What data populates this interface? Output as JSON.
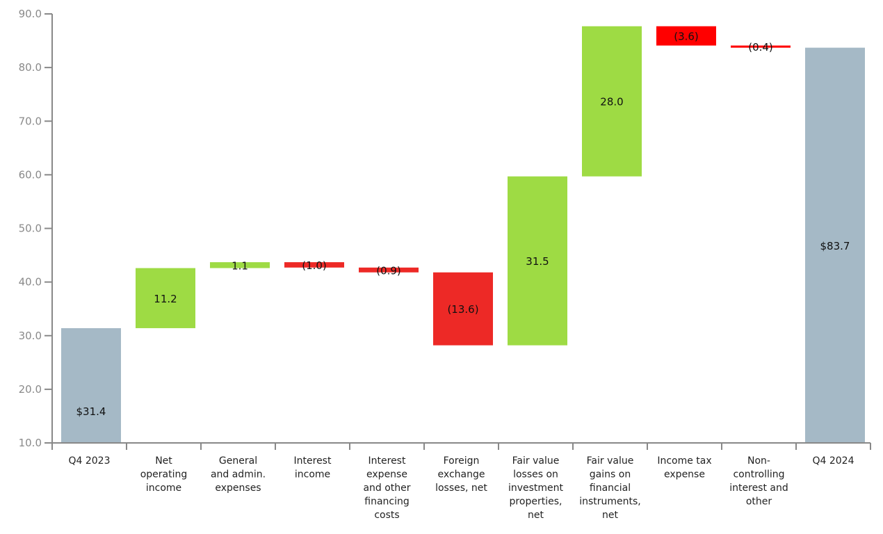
{
  "chart_data": {
    "type": "waterfall",
    "title": "",
    "xlabel": "",
    "ylabel": "",
    "ylim": [
      10,
      90
    ],
    "yticks": [
      "10.0",
      "20.0",
      "30.0",
      "40.0",
      "50.0",
      "60.0",
      "70.0",
      "80.0",
      "90.0"
    ],
    "grid": false,
    "colors": {
      "total": "#a5b9c6",
      "increase": "#9edb44",
      "decrease": "#ed2926",
      "decrease_bright": "#ff0000"
    },
    "categories": [
      [
        "Q4 2023"
      ],
      [
        "Net",
        "operating",
        "income"
      ],
      [
        "General",
        "and admin.",
        "expenses"
      ],
      [
        "Interest",
        "income"
      ],
      [
        "Interest",
        "expense",
        "and other",
        "financing",
        "costs"
      ],
      [
        "Foreign",
        "exchange",
        "losses, net"
      ],
      [
        "Fair value",
        "losses on",
        "investment",
        "properties,",
        "net"
      ],
      [
        "Fair value",
        "gains on",
        "financial",
        "instruments,",
        "net"
      ],
      [
        "Income tax",
        "expense"
      ],
      [
        "Non-",
        "controlling",
        "interest and",
        "other"
      ],
      [
        "Q4 2024"
      ]
    ],
    "bars": [
      {
        "kind": "total",
        "value": 31.4,
        "label": "$31.4",
        "color": "#a5b9c6"
      },
      {
        "kind": "delta",
        "value": 11.2,
        "label": "11.2",
        "color": "#9edb44"
      },
      {
        "kind": "delta",
        "value": 1.1,
        "label": "1.1",
        "color": "#9edb44"
      },
      {
        "kind": "delta",
        "value": -1.0,
        "label": "(1.0)",
        "color": "#ed2926"
      },
      {
        "kind": "delta",
        "value": -0.9,
        "label": "(0.9)",
        "color": "#ed2926"
      },
      {
        "kind": "delta",
        "value": -13.6,
        "label": "(13.6)",
        "color": "#ed2926"
      },
      {
        "kind": "delta",
        "value": 31.5,
        "label": "31.5",
        "color": "#9edb44"
      },
      {
        "kind": "delta",
        "value": 28.0,
        "label": "28.0",
        "color": "#9edb44"
      },
      {
        "kind": "delta",
        "value": -3.6,
        "label": "(3.6)",
        "color": "#ff0000"
      },
      {
        "kind": "delta",
        "value": -0.4,
        "label": "(0.4)",
        "color": "#ff0000"
      },
      {
        "kind": "total",
        "value": 83.7,
        "label": "$83.7",
        "color": "#a5b9c6"
      }
    ]
  }
}
